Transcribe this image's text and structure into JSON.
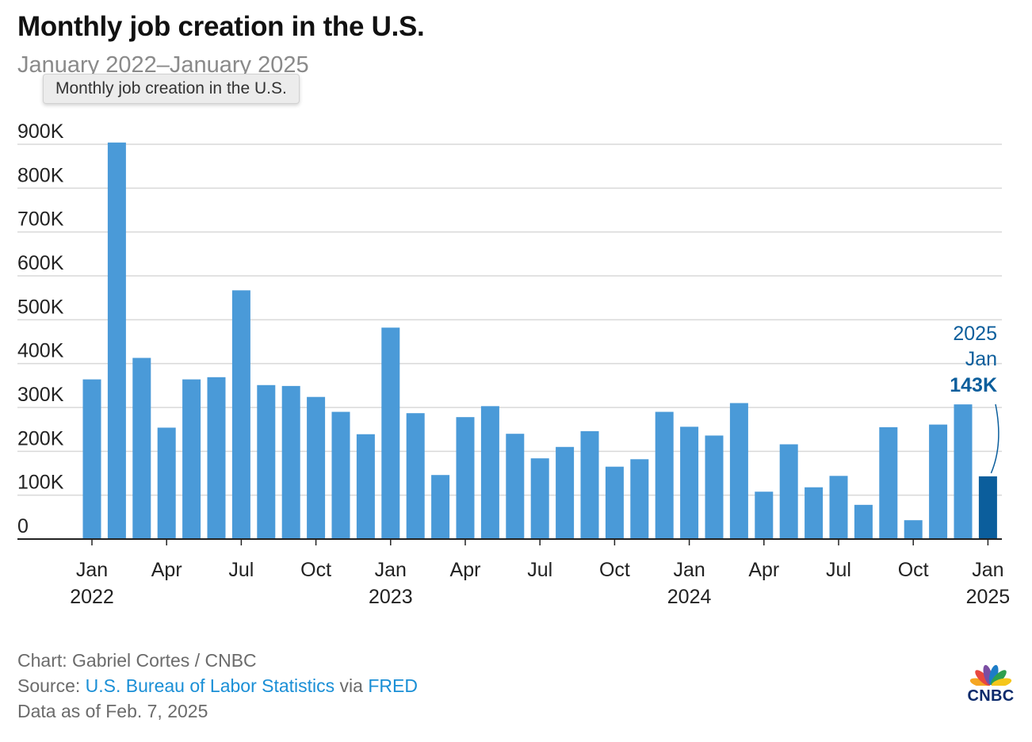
{
  "title": "Monthly job creation in the U.S.",
  "subtitle": "January 2022–January 2025",
  "tooltip": "Monthly job creation in the U.S.",
  "colors": {
    "bar": "#4a9ad8",
    "highlight_bar": "#0b5e9c",
    "annotation": "#0b5e9c",
    "grid": "#d9d9d9",
    "axis": "#222222",
    "text": "#222222"
  },
  "chart_data": {
    "type": "bar",
    "ylim": [
      0,
      900000
    ],
    "y_ticks": [
      0,
      100000,
      200000,
      300000,
      400000,
      500000,
      600000,
      700000,
      800000,
      900000
    ],
    "y_tick_labels": [
      "0",
      "100K",
      "200K",
      "300K",
      "400K",
      "500K",
      "600K",
      "700K",
      "800K",
      "900K"
    ],
    "x_tick_labels": [
      {
        "index": 0,
        "month": "Jan",
        "year": "2022"
      },
      {
        "index": 3,
        "month": "Apr",
        "year": ""
      },
      {
        "index": 6,
        "month": "Jul",
        "year": ""
      },
      {
        "index": 9,
        "month": "Oct",
        "year": ""
      },
      {
        "index": 12,
        "month": "Jan",
        "year": "2023"
      },
      {
        "index": 15,
        "month": "Apr",
        "year": ""
      },
      {
        "index": 18,
        "month": "Jul",
        "year": ""
      },
      {
        "index": 21,
        "month": "Oct",
        "year": ""
      },
      {
        "index": 24,
        "month": "Jan",
        "year": "2024"
      },
      {
        "index": 27,
        "month": "Apr",
        "year": ""
      },
      {
        "index": 30,
        "month": "Jul",
        "year": ""
      },
      {
        "index": 33,
        "month": "Oct",
        "year": ""
      },
      {
        "index": 36,
        "month": "Jan",
        "year": "2025"
      }
    ],
    "categories": [
      "2022-01",
      "2022-02",
      "2022-03",
      "2022-04",
      "2022-05",
      "2022-06",
      "2022-07",
      "2022-08",
      "2022-09",
      "2022-10",
      "2022-11",
      "2022-12",
      "2023-01",
      "2023-02",
      "2023-03",
      "2023-04",
      "2023-05",
      "2023-06",
      "2023-07",
      "2023-08",
      "2023-09",
      "2023-10",
      "2023-11",
      "2023-12",
      "2024-01",
      "2024-02",
      "2024-03",
      "2024-04",
      "2024-05",
      "2024-06",
      "2024-07",
      "2024-08",
      "2024-09",
      "2024-10",
      "2024-11",
      "2024-12",
      "2025-01"
    ],
    "values": [
      364000,
      904000,
      413000,
      254000,
      364000,
      369000,
      567000,
      351000,
      349000,
      324000,
      290000,
      239000,
      482000,
      287000,
      146000,
      278000,
      303000,
      240000,
      184000,
      210000,
      246000,
      165000,
      182000,
      290000,
      256000,
      236000,
      310000,
      108000,
      216000,
      118000,
      144000,
      78000,
      255000,
      43000,
      261000,
      307000,
      143000
    ],
    "highlight_index": 36,
    "annotation": {
      "year": "2025",
      "month": "Jan",
      "value_label": "143K"
    }
  },
  "footer": {
    "credit": "Chart: Gabriel Cortes / CNBC",
    "source_prefix": "Source: ",
    "source_name": "U.S. Bureau of Labor Statistics",
    "source_via": " via ",
    "source_fred": "FRED",
    "data_note": "Data as of Feb. 7, 2025"
  },
  "logo": {
    "name": "cnbc-peacock-icon",
    "wordmark": "CNBC"
  }
}
